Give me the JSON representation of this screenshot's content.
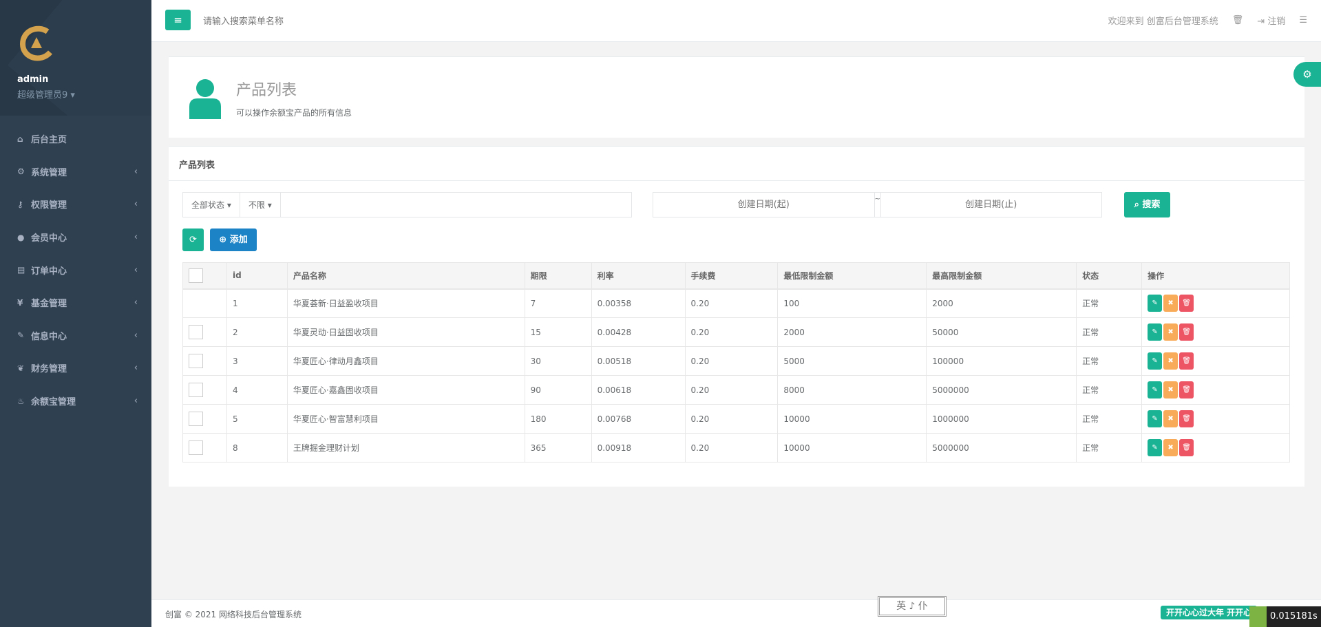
{
  "sidebar": {
    "username": "admin",
    "role": "超级管理员9",
    "items": [
      {
        "label": "后台主页",
        "icon": "home-icon",
        "glyph": "⌂",
        "arrow": ""
      },
      {
        "label": "系统管理",
        "icon": "gears-icon",
        "glyph": "⚙",
        "arrow": "‹"
      },
      {
        "label": "权限管理",
        "icon": "key-icon",
        "glyph": "⚷",
        "arrow": "‹"
      },
      {
        "label": "会员中心",
        "icon": "user-icon",
        "glyph": "●",
        "arrow": "‹"
      },
      {
        "label": "订单中心",
        "icon": "list-alt-icon",
        "glyph": "▤",
        "arrow": "‹"
      },
      {
        "label": "基金管理",
        "icon": "yen-icon",
        "glyph": "¥",
        "arrow": "‹"
      },
      {
        "label": "信息中心",
        "icon": "wrench-icon",
        "glyph": "✎",
        "arrow": "‹"
      },
      {
        "label": "财务管理",
        "icon": "leaf-icon",
        "glyph": "❦",
        "arrow": "‹"
      },
      {
        "label": "余额宝管理",
        "icon": "fire-icon",
        "glyph": "♨",
        "arrow": "‹"
      }
    ]
  },
  "topbar": {
    "search_placeholder": "请输入搜索菜单名称",
    "welcome": "欢迎来到 创富后台管理系统",
    "logout": "注销"
  },
  "header_panel": {
    "title": "产品列表",
    "subtitle": "可以操作余额宝产品的所有信息"
  },
  "list": {
    "title": "产品列表",
    "status_filter": "全部状态",
    "limit_filter": "不限",
    "date_start_placeholder": "创建日期(起)",
    "date_sep": "~",
    "date_end_placeholder": "创建日期(止)",
    "search_label": "搜索",
    "add_label": "添加",
    "columns": [
      "id",
      "产品名称",
      "期限",
      "利率",
      "手续费",
      "最低限制金额",
      "最高限制金额",
      "状态",
      "操作"
    ],
    "rows": [
      [
        "1",
        "华夏荟新·日益盈收项目",
        "7",
        "0.00358",
        "0.20",
        "100",
        "2000",
        "正常"
      ],
      [
        "2",
        "华夏灵动·日益固收项目",
        "15",
        "0.00428",
        "0.20",
        "2000",
        "50000",
        "正常"
      ],
      [
        "3",
        "华夏匠心·律动月鑫项目",
        "30",
        "0.00518",
        "0.20",
        "5000",
        "100000",
        "正常"
      ],
      [
        "4",
        "华夏匠心·嘉鑫固收项目",
        "90",
        "0.00618",
        "0.20",
        "8000",
        "5000000",
        "正常"
      ],
      [
        "5",
        "华夏匠心·智富慧利项目",
        "180",
        "0.00768",
        "0.20",
        "10000",
        "1000000",
        "正常"
      ],
      [
        "8",
        "王牌掘金理财计划",
        "365",
        "0.00918",
        "0.20",
        "10000",
        "5000000",
        "正常"
      ]
    ]
  },
  "footer": {
    "copyright": "创富 © 2021 网络科技后台管理系统",
    "scroll_text": "英 ♪ 仆",
    "banner": "开开心心过大年 开开心心",
    "timer": "0.015181s"
  },
  "colors": {
    "primary": "#1ab394",
    "info": "#1c84c6",
    "warning": "#f8ac59",
    "danger": "#ed5565",
    "sidebar": "#2f4050"
  }
}
